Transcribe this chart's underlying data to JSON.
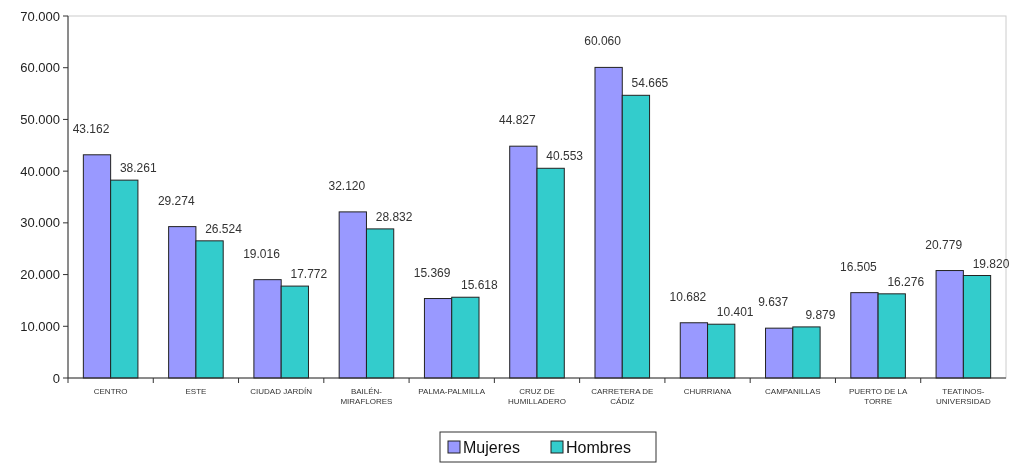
{
  "chart_data": {
    "type": "bar",
    "categories": [
      "CENTRO",
      "ESTE",
      "CIUDAD JARDÍN",
      "BAILÉN-MIRAFLORES",
      "PALMA-PALMILLA",
      "CRUZ DE HUMILLADERO",
      "CARRETERA DE CÁDIZ",
      "CHURRIANA",
      "CAMPANILLAS",
      "PUERTO DE LA TORRE",
      "TEATINOS-UNIVERSIDAD"
    ],
    "series": [
      {
        "name": "Mujeres",
        "color": "#9999ff",
        "values": [
          43162,
          29274,
          19016,
          32120,
          15369,
          44827,
          60060,
          10682,
          9637,
          16505,
          20779
        ],
        "value_labels": [
          "43.162",
          "29.274",
          "19.016",
          "32.120",
          "15.369",
          "44.827",
          "60.060",
          "10.682",
          "9.637",
          "16.505",
          "20.779"
        ]
      },
      {
        "name": "Hombres",
        "color": "#33cccc",
        "values": [
          38261,
          26524,
          17772,
          28832,
          15618,
          40553,
          54665,
          10401,
          9879,
          16276,
          19820
        ],
        "value_labels": [
          "38.261",
          "26.524",
          "17.772",
          "28.832",
          "15.618",
          "40.553",
          "54.665",
          "10.401",
          "9.879",
          "16.276",
          "19.820"
        ]
      }
    ],
    "ylim": [
      0,
      70000
    ],
    "yticks": [
      0,
      {
        "value": 10000,
        "label": "10.000"
      },
      {
        "value": 20000,
        "label": "20.000"
      },
      {
        "value": 30000,
        "label": "30.000"
      },
      {
        "value": 40000,
        "label": "40.000"
      },
      {
        "value": 50000,
        "label": "50.000"
      },
      {
        "value": 60000,
        "label": "60.000"
      },
      {
        "value": 70000,
        "label": "70.000"
      }
    ],
    "legend": "bottom"
  }
}
